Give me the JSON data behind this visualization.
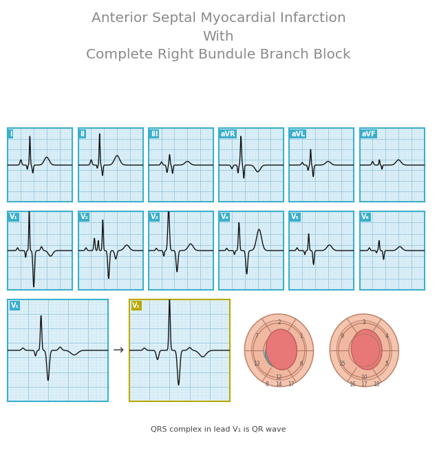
{
  "title_line1": "Anterior Septal Myocardial Infarction",
  "title_line2": "With",
  "title_line3": "Complete Right Bundule Branch Block",
  "title_color": "#8a8a8a",
  "title_fontsize": 14.5,
  "bg_color": "#ffffff",
  "grid_bg": "#dff0f8",
  "grid_line_major": "#a0cce0",
  "grid_line_minor": "#c4e4f0",
  "label_bg_blue": "#3aafcc",
  "label_bg_gold": "#b8a800",
  "label_text_color": "#ffffff",
  "ecg_line_color": "#111111",
  "bottom_text": "QRS complex in lead V₁ is QR wave",
  "leads_row1": [
    "I",
    "II",
    "III",
    "aVR",
    "aVL",
    "aVF"
  ],
  "leads_row2": [
    "V₁",
    "V₂",
    "V₃",
    "V₄",
    "V₅",
    "V₆"
  ]
}
